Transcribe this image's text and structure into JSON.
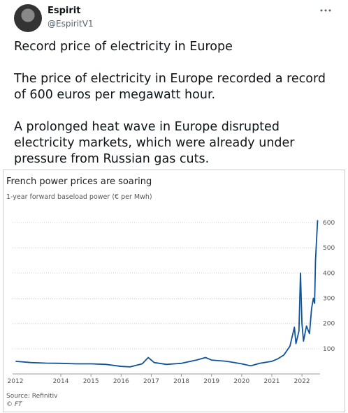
{
  "author": {
    "name": "Espirit",
    "handle": "@EspiritV1"
  },
  "tweet": {
    "paragraphs": [
      "Record price of electricity in Europe",
      "The price of electricity in Europe recorded a record of 600 euros per megawatt hour.",
      "A prolonged heat wave in Europe disrupted electricity markets, which were already under pressure from Russian gas cuts."
    ]
  },
  "chart_data": {
    "type": "line",
    "title": "French power prices are soaring",
    "subtitle": "1-year forward baseload power (€ per Mwh)",
    "source": "Source: Refinitiv",
    "credit": "© FT",
    "color": "#0f5499",
    "x": [
      2012.5,
      2013,
      2013.5,
      2014,
      2014.5,
      2015,
      2015.5,
      2016,
      2016.3,
      2016.7,
      2016.9,
      2017.1,
      2017.5,
      2018,
      2018.5,
      2018.8,
      2019,
      2019.5,
      2020,
      2020.3,
      2020.6,
      2020.9,
      2021,
      2021.2,
      2021.4,
      2021.6,
      2021.75,
      2021.8,
      2021.9,
      2021.95,
      2022.0,
      2022.05,
      2022.15,
      2022.25,
      2022.32,
      2022.38,
      2022.42,
      2022.45,
      2022.48,
      2022.52
    ],
    "values": [
      50,
      45,
      43,
      42,
      40,
      40,
      38,
      30,
      28,
      40,
      65,
      45,
      38,
      42,
      55,
      65,
      55,
      50,
      40,
      32,
      42,
      48,
      50,
      60,
      75,
      110,
      185,
      120,
      170,
      400,
      200,
      130,
      190,
      160,
      260,
      300,
      280,
      450,
      520,
      610
    ],
    "xlim": [
      2012.4,
      2022.6
    ],
    "xticks": [
      2012,
      2014,
      2015,
      2016,
      2017,
      2018,
      2019,
      2020,
      2021,
      2022
    ],
    "ylim": [
      0,
      650
    ],
    "yticks": [
      100,
      200,
      300,
      400,
      500,
      600
    ],
    "grid": true
  }
}
